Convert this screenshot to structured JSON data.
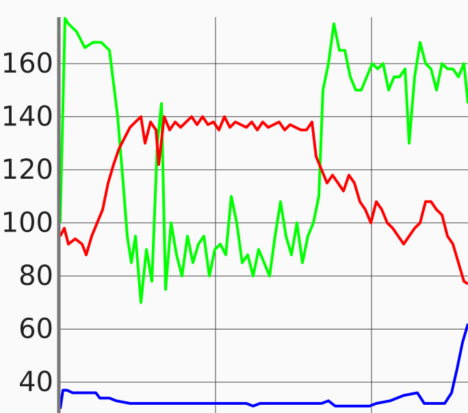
{
  "chart_data": {
    "type": "line",
    "ylim": [
      28.4,
      177.5
    ],
    "yticks": [
      40,
      60,
      80,
      100,
      120,
      140,
      160
    ],
    "xlim": [
      0,
      596
    ],
    "grid": true,
    "series": [
      {
        "color": "#00ff00",
        "x": [
          0,
          7,
          12,
          24,
          36,
          48,
          60,
          72,
          84,
          92,
          98,
          104,
          110,
          118,
          126,
          134,
          142,
          148,
          154,
          162,
          170,
          178,
          186,
          194,
          202,
          210,
          218,
          226,
          234,
          242,
          250,
          258,
          266,
          274,
          282,
          290,
          298,
          306,
          314,
          322,
          330,
          338,
          346,
          354,
          362,
          370,
          378,
          384,
          392,
          400,
          408,
          416,
          424,
          432,
          440,
          448,
          456,
          464,
          472,
          480,
          488,
          496,
          504,
          510,
          518,
          526,
          534,
          542,
          550,
          558,
          566,
          574,
          582,
          590,
          596
        ],
        "values": [
          100,
          177,
          175,
          172,
          166,
          168,
          168,
          165,
          140,
          115,
          95,
          85,
          95,
          70,
          90,
          78,
          130,
          145,
          75,
          100,
          88,
          80,
          95,
          85,
          92,
          95,
          80,
          90,
          92,
          88,
          110,
          100,
          85,
          88,
          80,
          90,
          85,
          80,
          95,
          108,
          95,
          88,
          100,
          85,
          95,
          100,
          110,
          150,
          160,
          175,
          165,
          165,
          155,
          150,
          150,
          155,
          160,
          158,
          160,
          150,
          155,
          155,
          158,
          130,
          155,
          168,
          160,
          158,
          150,
          160,
          158,
          158,
          155,
          160,
          145
        ]
      },
      {
        "color": "#ff0000",
        "x": [
          0,
          6,
          12,
          22,
          32,
          38,
          46,
          54,
          62,
          70,
          78,
          86,
          94,
          102,
          110,
          118,
          124,
          132,
          140,
          144,
          152,
          160,
          168,
          176,
          184,
          192,
          200,
          208,
          216,
          224,
          232,
          240,
          248,
          256,
          264,
          272,
          280,
          288,
          296,
          304,
          312,
          320,
          328,
          336,
          344,
          352,
          360,
          368,
          374,
          382,
          390,
          398,
          406,
          414,
          422,
          430,
          438,
          446,
          454,
          462,
          470,
          478,
          486,
          494,
          502,
          510,
          518,
          526,
          534,
          542,
          550,
          558,
          566,
          574,
          582,
          590,
          596
        ],
        "values": [
          95,
          98,
          92,
          94,
          92,
          88,
          95,
          100,
          105,
          115,
          122,
          128,
          132,
          136,
          138,
          140,
          130,
          138,
          135,
          122,
          140,
          135,
          138,
          136,
          138,
          140,
          137,
          140,
          137,
          138,
          135,
          140,
          136,
          138,
          137,
          136,
          138,
          135,
          138,
          136,
          137,
          138,
          135,
          137,
          136,
          135,
          135,
          138,
          125,
          120,
          115,
          118,
          115,
          112,
          118,
          115,
          108,
          105,
          100,
          108,
          105,
          100,
          98,
          95,
          92,
          95,
          98,
          100,
          108,
          108,
          105,
          103,
          95,
          92,
          85,
          78,
          77
        ]
      },
      {
        "color": "#0000ff",
        "x": [
          0,
          4,
          10,
          18,
          52,
          58,
          72,
          82,
          102,
          182,
          272,
          282,
          292,
          382,
          392,
          402,
          452,
          462,
          482,
          502,
          522,
          532,
          562,
          572,
          580,
          588,
          596
        ],
        "values": [
          30,
          37,
          37,
          36,
          36,
          34,
          34,
          33,
          32,
          32,
          32,
          31,
          32,
          32,
          33,
          31,
          31,
          32,
          33,
          35,
          36,
          32,
          32,
          36,
          45,
          55,
          62
        ]
      }
    ]
  }
}
